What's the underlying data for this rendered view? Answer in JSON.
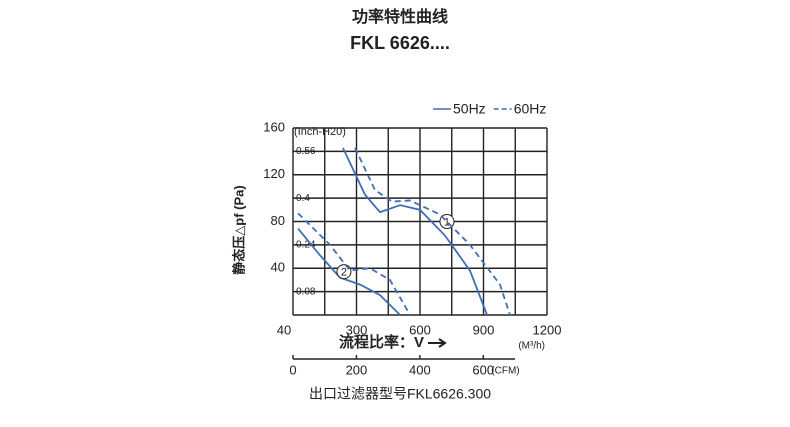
{
  "chart_data": {
    "type": "line",
    "title": "功率特性曲线",
    "subtitle": "FKL 6626....",
    "y_label": "静态压△pf (Pa)",
    "x_label": "流程比率：V",
    "x_unit": "(M³/h)",
    "y2_label": "(Inch-H20)",
    "x2_unit": "(CFM)",
    "corner_label": "40",
    "footer": "出口过滤器型号FKL6626.300",
    "xlim": [
      0,
      1200
    ],
    "xticks": [
      300,
      600,
      900,
      1200
    ],
    "ylim": [
      0,
      160
    ],
    "yticks": [
      40,
      80,
      120,
      160
    ],
    "y2lim": [
      0,
      0.64
    ],
    "y2ticks": [
      0.08,
      0.24,
      0.4,
      0.56
    ],
    "x2lim": [
      0,
      700
    ],
    "x2ticks": [
      0,
      200,
      400,
      600
    ],
    "xgrid": [
      0,
      150,
      300,
      450,
      600,
      750,
      900,
      1050,
      1200
    ],
    "ygrid": [
      0,
      20,
      40,
      60,
      80,
      100,
      120,
      140,
      160
    ],
    "grid": true,
    "series": [
      {
        "name": "50Hz",
        "color": "#3f6fb5",
        "dashed": false,
        "curves": [
          {
            "label": "1",
            "x": [
              236,
              340,
              411,
              506,
              600,
              718,
              836,
              917
            ],
            "y": [
              143,
              103,
              88,
              94,
              90,
              68,
              38,
              0
            ]
          },
          {
            "label": "2",
            "x": [
              24,
              128,
              222,
              317,
              411,
              506
            ],
            "y": [
              74,
              51,
              32,
              26,
              17,
              0
            ]
          }
        ]
      },
      {
        "name": "60Hz",
        "color": "#3f6fb5",
        "dashed": true,
        "curves": [
          {
            "x": [
              293,
              387,
              468,
              553,
              694,
              836,
              978,
              1025
            ],
            "y": [
              143,
              107,
              97,
              98,
              86,
              60,
              26,
              0
            ]
          },
          {
            "x": [
              24,
              175,
              269,
              364,
              458,
              553
            ],
            "y": [
              87,
              60,
              38,
              40,
              30,
              0
            ]
          }
        ]
      }
    ]
  }
}
